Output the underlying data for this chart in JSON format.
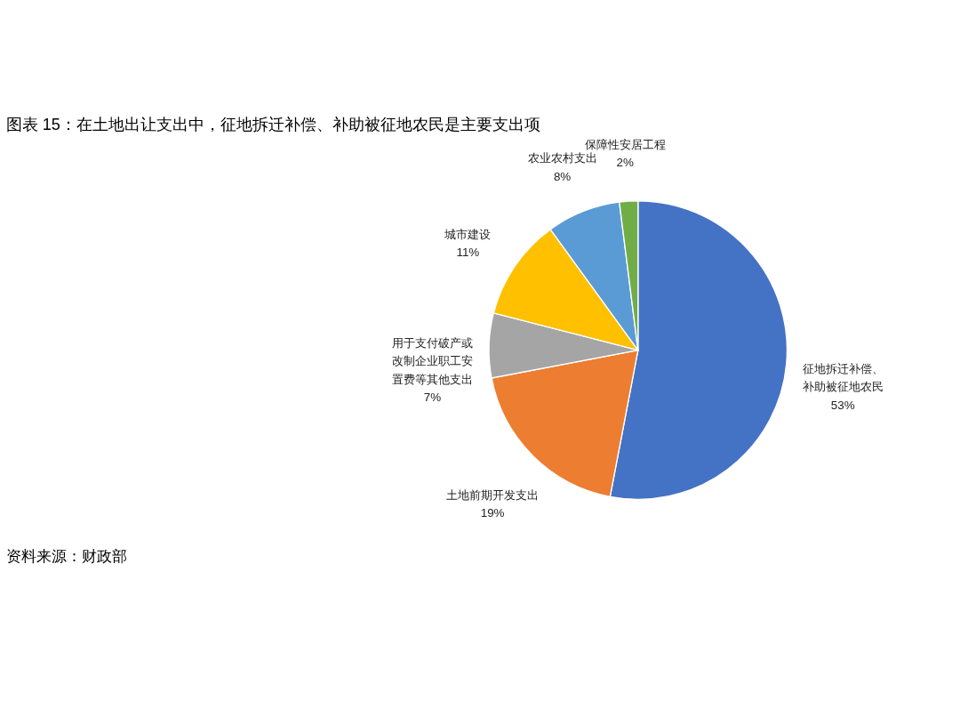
{
  "chart_data": {
    "type": "pie",
    "title": "图表 15：在土地出让支出中，征地拆迁补偿、补助被征地农民是主要支出项",
    "categories": [
      "征地拆迁补偿、补助被征地农民",
      "土地前期开发支出",
      "用于支付破产或改制企业职工安置费等其他支出",
      "城市建设",
      "农业农村支出",
      "保障性安居工程"
    ],
    "values": [
      53,
      19,
      7,
      11,
      8,
      2
    ],
    "value_labels": [
      "53%",
      "19%",
      "7%",
      "11%",
      "8%",
      "2%"
    ],
    "colors": [
      "#4472c4",
      "#ed7d31",
      "#a5a5a5",
      "#ffc000",
      "#5b9bd5",
      "#70ad47"
    ],
    "legend": false,
    "annotations": [
      "资料来源：财政部"
    ]
  }
}
